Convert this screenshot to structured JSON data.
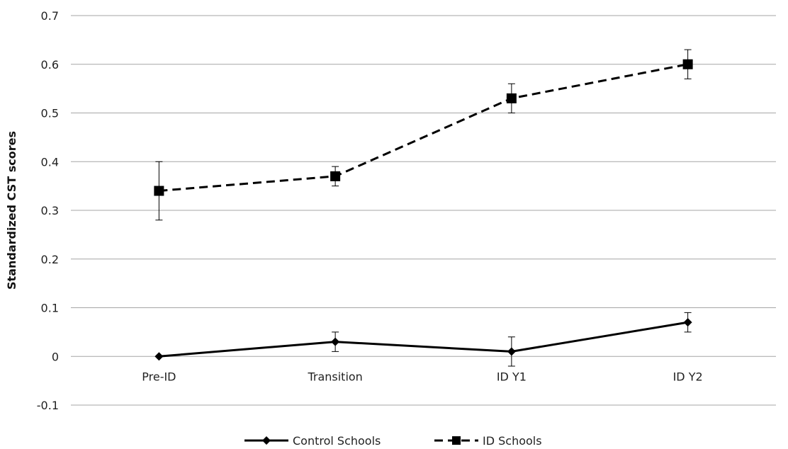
{
  "chart_data": {
    "type": "line",
    "title": "",
    "xlabel": "",
    "ylabel": "Standardized CST scores",
    "categories": [
      "Pre-ID",
      "Transition",
      "ID Y1",
      "ID Y2"
    ],
    "ylim": [
      -0.1,
      0.7
    ],
    "yticks": [
      "-0.1",
      "0",
      "0.1",
      "0.2",
      "0.3",
      "0.4",
      "0.5",
      "0.6",
      "0.7"
    ],
    "grid": true,
    "legend_position": "bottom",
    "series": [
      {
        "name": "Control Schools",
        "values": [
          0.0,
          0.03,
          0.01,
          0.07
        ],
        "error_low": [
          0.0,
          0.01,
          -0.02,
          0.05
        ],
        "error_high": [
          0.0,
          0.05,
          0.04,
          0.09
        ],
        "line_style": "solid",
        "marker": "diamond",
        "color": "#000000"
      },
      {
        "name": "ID Schools",
        "values": [
          0.34,
          0.37,
          0.53,
          0.6
        ],
        "error_low": [
          0.28,
          0.35,
          0.5,
          0.57
        ],
        "error_high": [
          0.4,
          0.39,
          0.56,
          0.63
        ],
        "line_style": "dashed",
        "marker": "square",
        "color": "#000000"
      }
    ]
  }
}
